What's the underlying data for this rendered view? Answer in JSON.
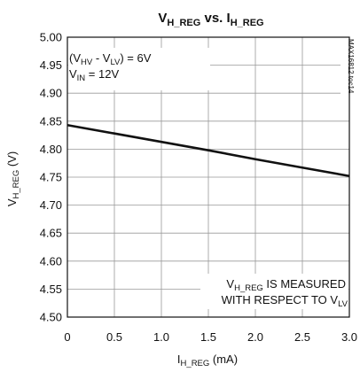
{
  "chart_data": {
    "type": "line",
    "title": {
      "main": "V",
      "sub1": "H_REG",
      "mid": " vs. I",
      "sub2": "H_REG"
    },
    "xlabel": {
      "main": "I",
      "sub": "H_REG",
      "unit": " (mA)"
    },
    "ylabel": {
      "main": "V",
      "sub": "H_REG",
      "unit": " (V)"
    },
    "xlim": [
      0,
      3.0
    ],
    "ylim": [
      4.5,
      5.0
    ],
    "xticks": [
      "0",
      "0.5",
      "1.0",
      "1.5",
      "2.0",
      "2.5",
      "3.0"
    ],
    "yticks": [
      "5.00",
      "4.95",
      "4.90",
      "4.85",
      "4.80",
      "4.75",
      "4.70",
      "4.65",
      "4.60",
      "4.55",
      "4.50"
    ],
    "grid": true,
    "series": [
      {
        "x": [
          0,
          0.5,
          1.0,
          1.5,
          2.0,
          2.5,
          3.0
        ],
        "y": [
          4.843,
          4.828,
          4.813,
          4.798,
          4.782,
          4.767,
          4.752
        ]
      }
    ],
    "annotations": {
      "cond1": {
        "a": "(V",
        "s1": "HV",
        "b": " - V",
        "s2": "LV",
        "c": ") = 6V"
      },
      "cond2": {
        "a": "V",
        "s1": "IN",
        "b": " = 12V"
      },
      "note1": {
        "a": "V",
        "s1": "H_REG",
        "b": " IS MEASURED"
      },
      "note2": {
        "a": "WITH RESPECT TO V",
        "s1": "LV"
      },
      "code": "MAX16812 toc14"
    },
    "colors": {
      "line": "#111111",
      "grid": "#999999",
      "frame": "#111111"
    }
  }
}
